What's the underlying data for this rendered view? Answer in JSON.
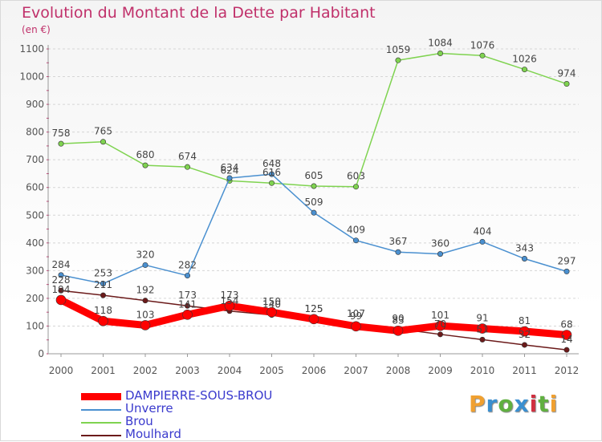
{
  "title": "Evolution du Montant de la Dette par Habitant",
  "unit": "(en €)",
  "logo_text": "Proxiti",
  "logo_colors": [
    "#f0a030",
    "#3a8fd0",
    "#60b040",
    "#3a8fd0",
    "#d03040",
    "#60b040",
    "#f0a030"
  ],
  "chart_data": {
    "type": "line",
    "x": [
      "2000",
      "2001",
      "2002",
      "2003",
      "2004",
      "2005",
      "2006",
      "2007",
      "2008",
      "2009",
      "2010",
      "2011",
      "2012"
    ],
    "ylim": [
      0,
      1100
    ],
    "yticks": [
      0,
      100,
      200,
      300,
      400,
      500,
      600,
      700,
      800,
      900,
      1000,
      1100
    ],
    "grid": "horizontal",
    "legend_position": "bottom-left",
    "series": [
      {
        "name": "DAMPIERRE-SOUS-BROU",
        "color": "#ff0000",
        "values": [
          194,
          118,
          103,
          141,
          173,
          150,
          125,
          99,
          83,
          101,
          91,
          81,
          68
        ]
      },
      {
        "name": "Unverre",
        "color": "#4a90d0",
        "values": [
          284,
          253,
          320,
          282,
          634,
          648,
          509,
          409,
          367,
          360,
          404,
          343,
          297
        ]
      },
      {
        "name": "Brou",
        "color": "#7fd350",
        "values": [
          758,
          765,
          680,
          674,
          624,
          616,
          605,
          603,
          1059,
          1084,
          1076,
          1026,
          974
        ]
      },
      {
        "name": "Moulhard",
        "color": "#6b1a1a",
        "values": [
          228,
          211,
          192,
          173,
          154,
          140,
          125,
          107,
          90,
          70,
          51,
          32,
          14
        ]
      }
    ]
  }
}
